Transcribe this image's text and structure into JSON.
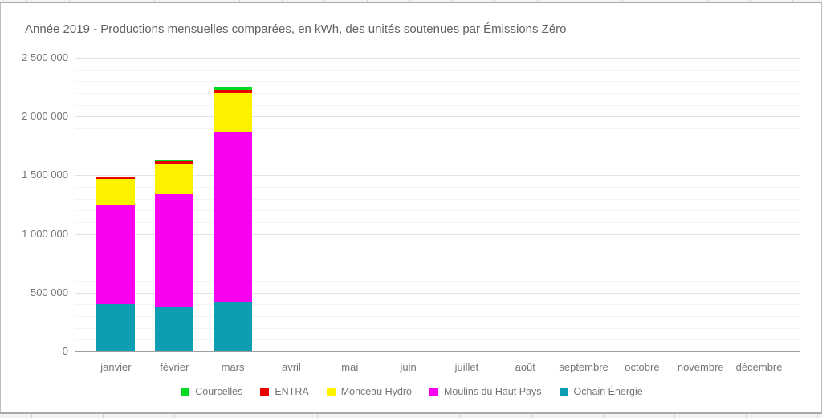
{
  "title": "Année 2019 - Productions mensuelles comparées, en kWh, des unités soutenues par Émissions Zéro",
  "chart_data": {
    "type": "bar",
    "stacked": true,
    "title": "Année 2019 - Productions mensuelles comparées, en kWh, des unités soutenues par Émissions Zéro",
    "xlabel": "",
    "ylabel": "",
    "categories": [
      "janvier",
      "février",
      "mars",
      "avril",
      "mai",
      "juin",
      "juillet",
      "août",
      "septembre",
      "octobre",
      "novembre",
      "décembre"
    ],
    "series": [
      {
        "name": "Ochain Énergie",
        "color": "#0d9eb4",
        "values": [
          405000,
          375000,
          420000,
          0,
          0,
          0,
          0,
          0,
          0,
          0,
          0,
          0
        ]
      },
      {
        "name": "Moulins du Haut Pays",
        "color": "#f902f0",
        "values": [
          840000,
          965000,
          1450000,
          0,
          0,
          0,
          0,
          0,
          0,
          0,
          0,
          0
        ]
      },
      {
        "name": "Monceau Hydro",
        "color": "#fcf200",
        "values": [
          225000,
          255000,
          330000,
          0,
          0,
          0,
          0,
          0,
          0,
          0,
          0,
          0
        ]
      },
      {
        "name": "ENTRA",
        "color": "#ea0000",
        "values": [
          15000,
          25000,
          30000,
          0,
          0,
          0,
          0,
          0,
          0,
          0,
          0,
          0
        ]
      },
      {
        "name": "Courcelles",
        "color": "#00d91d",
        "values": [
          0,
          15000,
          20000,
          0,
          0,
          0,
          0,
          0,
          0,
          0,
          0,
          0
        ]
      }
    ],
    "legend": {
      "position": "bottom",
      "order": [
        "Courcelles",
        "ENTRA",
        "Monceau Hydro",
        "Moulins du Haut Pays",
        "Ochain Énergie"
      ]
    },
    "y_axis": {
      "min": 0,
      "max": 2500000,
      "major_step": 500000,
      "minor_step": 100000,
      "tick_labels": [
        "0",
        "500 000",
        "1 000 000",
        "1 500 000",
        "2 000 000",
        "2 500 000"
      ]
    },
    "grid": true
  },
  "colors": {
    "title_text": "#616161",
    "axis_text": "#757575",
    "grid_major": "#e2e2e2",
    "grid_minor": "#f4f4f4",
    "baseline": "#9e9e9e",
    "background": "#ffffff",
    "frame_border": "#a9a9a9",
    "sheet_strip": "#f2f2f2"
  }
}
